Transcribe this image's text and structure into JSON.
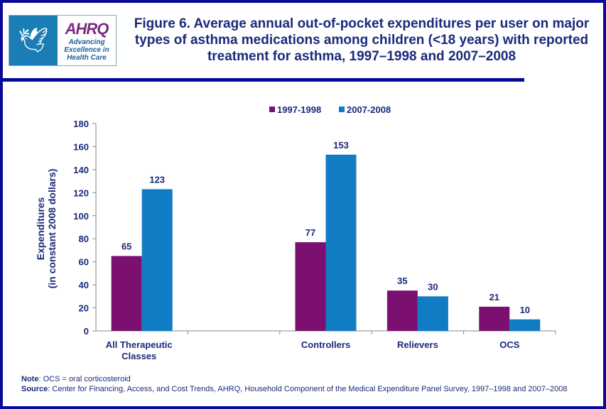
{
  "logo": {
    "text": "AHRQ",
    "tagline": "Advancing Excellence in Health Care"
  },
  "title": "Figure 6. Average annual out-of-pocket expenditures per user on major types of asthma medications among children (<18 years) with reported treatment for asthma, 1997–1998 and 2007–2008",
  "note_label": "Note",
  "note": ": OCS = oral corticosteroid",
  "source_label": "Source",
  "source": ": Center for Financing, Access, and Cost Trends, AHRQ,  Household Component of the Medical Expenditure Panel Survey,  1997–1998 and 2007–2008",
  "chart_data": {
    "type": "bar",
    "categories": [
      "All Therapeutic Classes",
      "",
      "Controllers",
      "Relievers",
      "OCS"
    ],
    "series": [
      {
        "name": "1997-1998",
        "values": [
          65,
          null,
          77,
          35,
          21
        ],
        "color": "#7b1070"
      },
      {
        "name": "2007-2008",
        "values": [
          123,
          null,
          153,
          30,
          10
        ],
        "color": "#0f7cc4"
      }
    ],
    "ylabel": "Expenditures (in constant 2008 dollars)",
    "ylabel_lines": [
      "Expenditures",
      "(in constant 2008 dollars)"
    ],
    "ylim": [
      0,
      180
    ],
    "yticks": [
      0,
      20,
      40,
      60,
      80,
      100,
      120,
      140,
      160,
      180
    ],
    "legend": "top",
    "grid": false,
    "data_labels": true
  }
}
